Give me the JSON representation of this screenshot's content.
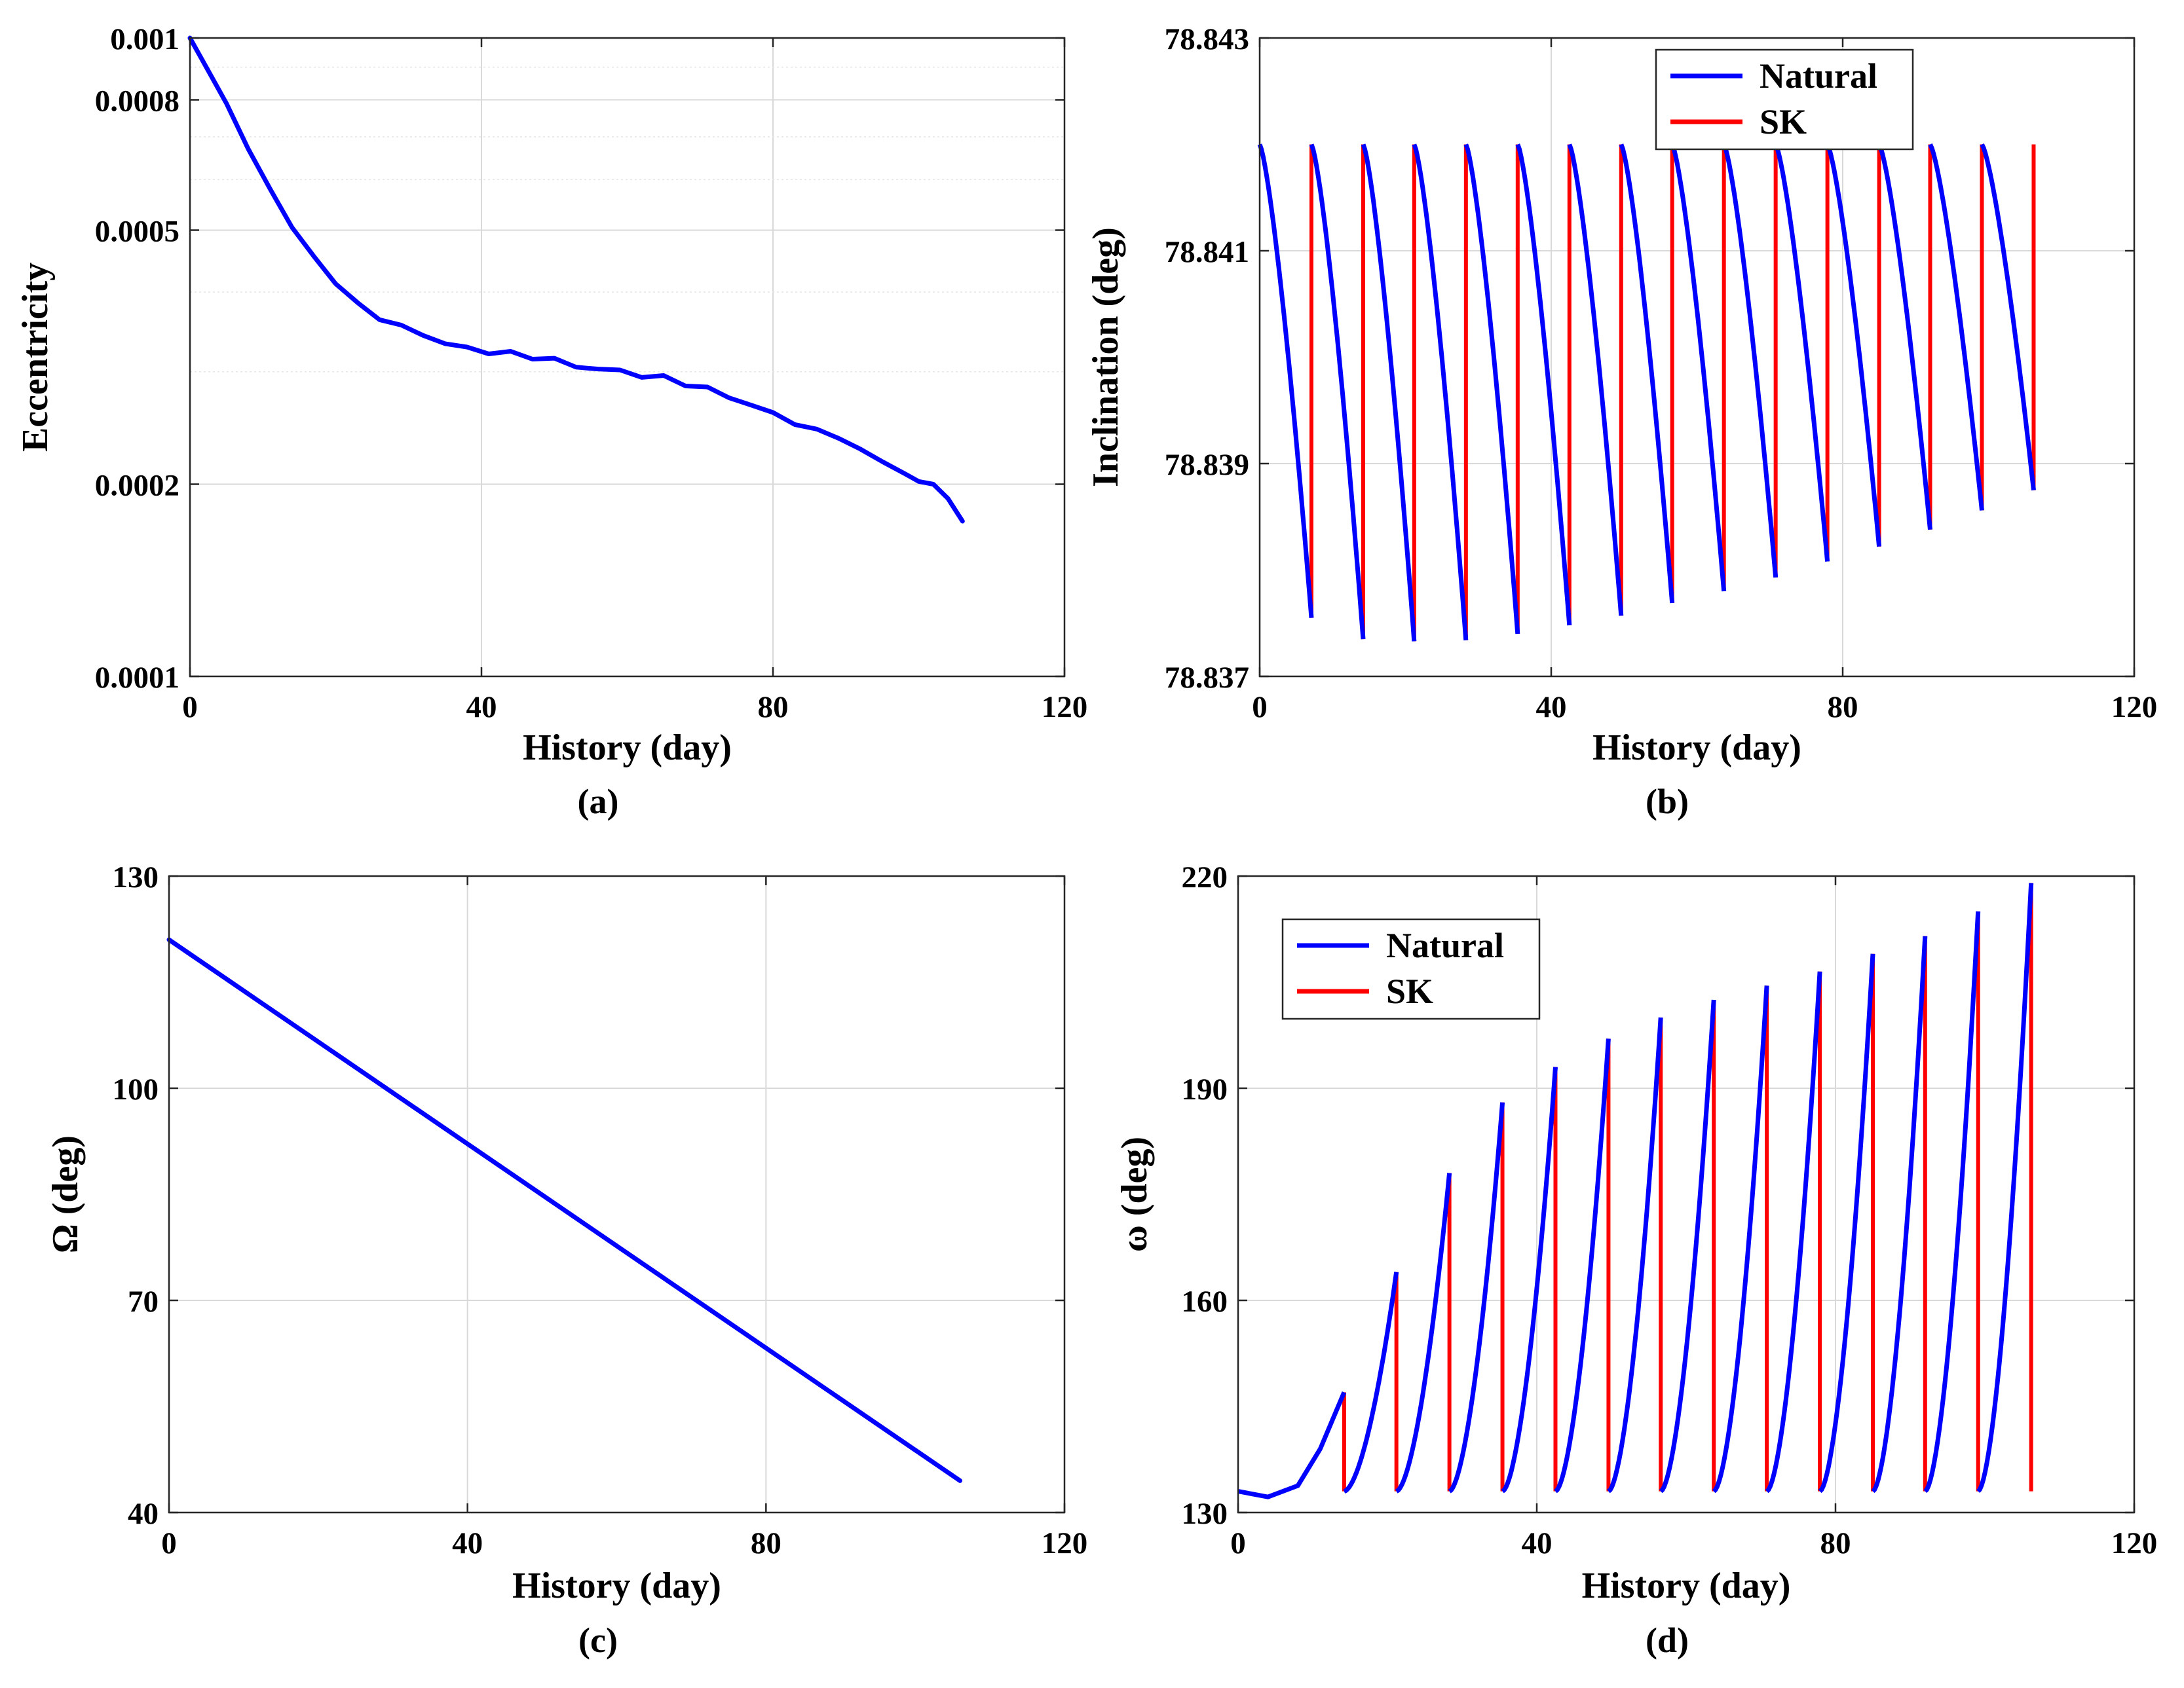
{
  "colors": {
    "natural": "#0000ff",
    "sk": "#ff0000",
    "grid": "#d9d9d9",
    "axis": "#262626"
  },
  "chart_data": [
    {
      "id": "a",
      "type": "line",
      "panel_label": "(a)",
      "xlabel": "History (day)",
      "ylabel": "Eccentricity",
      "xlim": [
        0,
        120
      ],
      "ylim": [
        0.0001,
        0.001
      ],
      "yscale": "log",
      "xticks": [
        0,
        40,
        80,
        120
      ],
      "xtick_labels": [
        "0",
        "40",
        "80",
        "120"
      ],
      "yticks": [
        0.0001,
        0.0002,
        0.0005,
        0.0008,
        0.001
      ],
      "ytick_labels": [
        "0.0001",
        "0.0002",
        "0.0005",
        "0.0008",
        "0.001"
      ],
      "minor_y_grid": [
        0.0003,
        0.0004,
        0.0006,
        0.0007,
        0.0009
      ],
      "grid": true,
      "series": [
        {
          "name": "Eccentricity",
          "color_key": "natural",
          "x": [
            0,
            2,
            5,
            8,
            11,
            14,
            17,
            20,
            23,
            26,
            29,
            32,
            35,
            38,
            41,
            44,
            47,
            50,
            53,
            56,
            59,
            62,
            65,
            68,
            71,
            74,
            77,
            80,
            83,
            86,
            89,
            92,
            95,
            98,
            100,
            102,
            104,
            106
          ],
          "y": [
            0.001,
            0.00091,
            0.00079,
            0.00067,
            0.00058,
            0.000505,
            0.000455,
            0.000412,
            0.000385,
            0.000362,
            0.000355,
            0.000342,
            0.000332,
            0.000328,
            0.00032,
            0.000323,
            0.000314,
            0.000315,
            0.000305,
            0.000303,
            0.000302,
            0.000294,
            0.000296,
            0.000285,
            0.000284,
            0.000273,
            0.000266,
            0.000259,
            0.000248,
            0.000244,
            0.000236,
            0.000227,
            0.000217,
            0.000208,
            0.000202,
            0.0002,
            0.00019,
            0.000175
          ]
        }
      ]
    },
    {
      "id": "b",
      "type": "line",
      "panel_label": "(b)",
      "xlabel": "History (day)",
      "ylabel": "Inclination (deg)",
      "xlim": [
        0,
        120
      ],
      "ylim": [
        78.837,
        78.843
      ],
      "xticks": [
        0,
        40,
        80,
        120
      ],
      "xtick_labels": [
        "0",
        "40",
        "80",
        "120"
      ],
      "yticks": [
        78.837,
        78.839,
        78.841,
        78.843
      ],
      "ytick_labels": [
        "78.837",
        "78.839",
        "78.841",
        "78.843"
      ],
      "grid": true,
      "legend": {
        "position": "top-right",
        "entries": [
          "Natural",
          "SK"
        ]
      },
      "sk_days": [
        7.1,
        14.2,
        21.2,
        28.3,
        35.4,
        42.5,
        49.6,
        56.6,
        63.7,
        70.8,
        77.9,
        85.0,
        92.0,
        99.1,
        106.2
      ],
      "sk_minima": [
        78.83755,
        78.83735,
        78.83733,
        78.83734,
        78.8374,
        78.83748,
        78.83757,
        78.83769,
        78.8378,
        78.83793,
        78.83808,
        78.83822,
        78.83838,
        78.83856,
        78.83875
      ],
      "sk_reset_value": 78.842,
      "series": [
        {
          "name": "Natural",
          "color_key": "natural",
          "description": "sawtooth decreasing between SK maneuvers"
        },
        {
          "name": "SK",
          "color_key": "sk",
          "description": "vertical reset lines at maneuver days"
        }
      ]
    },
    {
      "id": "c",
      "type": "line",
      "panel_label": "(c)",
      "xlabel": "History (day)",
      "ylabel": "Ω (deg)",
      "xlim": [
        0,
        120
      ],
      "ylim": [
        40,
        130
      ],
      "xticks": [
        0,
        40,
        80,
        120
      ],
      "xtick_labels": [
        "0",
        "40",
        "80",
        "120"
      ],
      "yticks": [
        40,
        70,
        100,
        130
      ],
      "ytick_labels": [
        "40",
        "70",
        "100",
        "130"
      ],
      "grid": true,
      "series": [
        {
          "name": "RAAN",
          "color_key": "natural",
          "x": [
            0,
            106
          ],
          "y": [
            121,
            44.5
          ]
        }
      ]
    },
    {
      "id": "d",
      "type": "line",
      "panel_label": "(d)",
      "xlabel": "History (day)",
      "ylabel": "ω (deg)",
      "xlim": [
        0,
        120
      ],
      "ylim": [
        130,
        220
      ],
      "xticks": [
        0,
        40,
        80,
        120
      ],
      "xtick_labels": [
        "0",
        "40",
        "80",
        "120"
      ],
      "yticks": [
        130,
        160,
        190,
        220
      ],
      "ytick_labels": [
        "130",
        "160",
        "190",
        "220"
      ],
      "grid": true,
      "legend": {
        "position": "top-left",
        "entries": [
          "Natural",
          "SK"
        ]
      },
      "sk_days": [
        14.2,
        21.2,
        28.3,
        35.4,
        42.5,
        49.6,
        56.6,
        63.7,
        70.8,
        77.9,
        85.0,
        92.0,
        99.1,
        106.2
      ],
      "sk_peaks": [
        147,
        164,
        178,
        188,
        193,
        197,
        200,
        202.5,
        204.5,
        206.5,
        209,
        211.5,
        215,
        219
      ],
      "sk_reset_value": 133,
      "initial_segment": {
        "x": [
          0,
          4,
          8,
          11,
          14.2
        ],
        "y": [
          133,
          132.2,
          133.8,
          139,
          147
        ]
      },
      "series": [
        {
          "name": "Natural",
          "color_key": "natural",
          "description": "rising curve between SK maneuvers"
        },
        {
          "name": "SK",
          "color_key": "sk",
          "description": "vertical reset lines at maneuver days"
        }
      ]
    }
  ]
}
